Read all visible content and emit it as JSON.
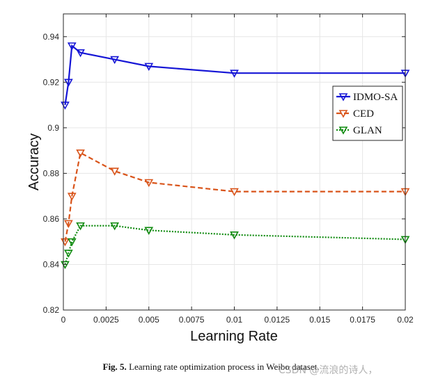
{
  "chart_data": {
    "type": "line",
    "xlabel": "Learning Rate",
    "ylabel": "Accuracy",
    "xlim": [
      0,
      0.02
    ],
    "ylim": [
      0.82,
      0.95
    ],
    "x_ticks": [
      0,
      0.0025,
      0.005,
      0.0075,
      0.01,
      0.0125,
      0.015,
      0.0175,
      0.02
    ],
    "x_tick_labels": [
      "0",
      "0.0025",
      "0.005",
      "0.0075",
      "0.01",
      "0.0125",
      "0.015",
      "0.0175",
      "0.02"
    ],
    "y_ticks": [
      0.82,
      0.84,
      0.86,
      0.88,
      0.9,
      0.92,
      0.94
    ],
    "y_tick_labels": [
      "0.82",
      "0.84",
      "0.86",
      "0.88",
      "0.9",
      "0.92",
      "0.94"
    ],
    "grid": true,
    "legend_position": "right",
    "series": [
      {
        "name": "IDMO-SA",
        "color": "#1515d6",
        "line_style": "solid",
        "marker": "down-triangle",
        "x": [
          0.0001,
          0.0003,
          0.0005,
          0.001,
          0.003,
          0.005,
          0.01,
          0.02
        ],
        "y": [
          0.91,
          0.92,
          0.936,
          0.933,
          0.93,
          0.927,
          0.924,
          0.924
        ]
      },
      {
        "name": "CED",
        "color": "#d9541a",
        "line_style": "dashed",
        "marker": "down-triangle",
        "x": [
          0.0001,
          0.0003,
          0.0005,
          0.001,
          0.003,
          0.005,
          0.01,
          0.02
        ],
        "y": [
          0.85,
          0.858,
          0.87,
          0.889,
          0.881,
          0.876,
          0.872,
          0.872
        ]
      },
      {
        "name": "GLAN",
        "color": "#0e8a0e",
        "line_style": "dotted",
        "marker": "down-triangle",
        "x": [
          0.0001,
          0.0003,
          0.0005,
          0.001,
          0.003,
          0.005,
          0.01,
          0.02
        ],
        "y": [
          0.84,
          0.845,
          0.85,
          0.857,
          0.857,
          0.855,
          0.853,
          0.851
        ]
      }
    ]
  },
  "caption": {
    "label": "Fig. 5.",
    "text": "Learning rate optimization process in Weibo dataset."
  },
  "watermark": "CSDN @流浪的诗人，"
}
